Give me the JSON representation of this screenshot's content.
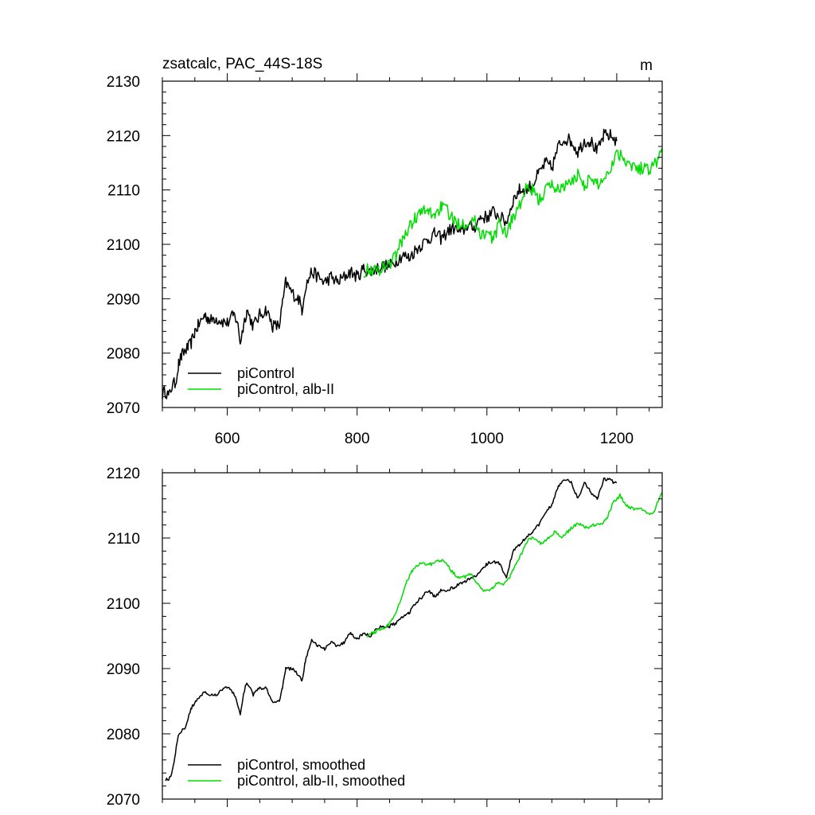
{
  "chart_data": [
    {
      "type": "line",
      "title": "zsatcalc, PAC_44S-18S",
      "units": "m",
      "xlim": [
        500,
        1270
      ],
      "ylim": [
        2070,
        2130
      ],
      "x_ticks": [
        600,
        800,
        1000,
        1200
      ],
      "x_tick_labels": [
        "600",
        "800",
        "1000",
        "1200"
      ],
      "y_ticks": [
        2070,
        2080,
        2090,
        2100,
        2110,
        2120,
        2130
      ],
      "y_tick_labels": [
        "2070",
        "2080",
        "2090",
        "2100",
        "2110",
        "2120",
        "2130"
      ],
      "legend_position": "lower-left",
      "series": [
        {
          "name": "piControl",
          "color": "#000000",
          "noise": 1.2,
          "points": [
            [
              500,
              2072.5
            ],
            [
              505,
              2073
            ],
            [
              510,
              2072
            ],
            [
              515,
              2074
            ],
            [
              520,
              2074.5
            ],
            [
              525,
              2078
            ],
            [
              530,
              2079.5
            ],
            [
              535,
              2080.5
            ],
            [
              540,
              2081
            ],
            [
              545,
              2082
            ],
            [
              550,
              2084
            ],
            [
              555,
              2085
            ],
            [
              560,
              2086
            ],
            [
              565,
              2087
            ],
            [
              570,
              2086.5
            ],
            [
              575,
              2086
            ],
            [
              580,
              2086.5
            ],
            [
              590,
              2086
            ],
            [
              600,
              2085.5
            ],
            [
              610,
              2087
            ],
            [
              615,
              2086
            ],
            [
              620,
              2082
            ],
            [
              625,
              2085
            ],
            [
              630,
              2088
            ],
            [
              640,
              2085
            ],
            [
              650,
              2087
            ],
            [
              660,
              2088
            ],
            [
              670,
              2085
            ],
            [
              680,
              2085
            ],
            [
              685,
              2089
            ],
            [
              690,
              2093
            ],
            [
              700,
              2091
            ],
            [
              710,
              2090
            ],
            [
              715,
              2088
            ],
            [
              720,
              2092
            ],
            [
              730,
              2095
            ],
            [
              740,
              2094
            ],
            [
              750,
              2093
            ],
            [
              760,
              2094
            ],
            [
              770,
              2093
            ],
            [
              780,
              2094
            ],
            [
              790,
              2095
            ],
            [
              800,
              2094
            ],
            [
              810,
              2095.5
            ],
            [
              820,
              2095
            ],
            [
              830,
              2095.5
            ],
            [
              840,
              2096
            ],
            [
              850,
              2096
            ],
            [
              860,
              2097
            ],
            [
              870,
              2098
            ],
            [
              880,
              2097.5
            ],
            [
              890,
              2099
            ],
            [
              900,
              2100
            ],
            [
              910,
              2101
            ],
            [
              920,
              2102
            ],
            [
              930,
              2101
            ],
            [
              940,
              2102.5
            ],
            [
              950,
              2103
            ],
            [
              960,
              2102
            ],
            [
              970,
              2103.5
            ],
            [
              980,
              2103
            ],
            [
              990,
              2105
            ],
            [
              1000,
              2105
            ],
            [
              1010,
              2106
            ],
            [
              1020,
              2105
            ],
            [
              1030,
              2104
            ],
            [
              1040,
              2108
            ],
            [
              1050,
              2110
            ],
            [
              1060,
              2110
            ],
            [
              1070,
              2111
            ],
            [
              1080,
              2113
            ],
            [
              1090,
              2115
            ],
            [
              1100,
              2114
            ],
            [
              1110,
              2118
            ],
            [
              1120,
              2119.5
            ],
            [
              1130,
              2119
            ],
            [
              1140,
              2117
            ],
            [
              1150,
              2119
            ],
            [
              1160,
              2119
            ],
            [
              1170,
              2117
            ],
            [
              1180,
              2120
            ],
            [
              1190,
              2120
            ],
            [
              1200,
              2119
            ]
          ]
        },
        {
          "name": "piControl, alb-II",
          "color": "#00dd00",
          "noise": 1.2,
          "points": [
            [
              810,
              2095
            ],
            [
              820,
              2095.5
            ],
            [
              830,
              2095
            ],
            [
              840,
              2096
            ],
            [
              850,
              2096.5
            ],
            [
              860,
              2098
            ],
            [
              870,
              2101
            ],
            [
              880,
              2103
            ],
            [
              890,
              2105
            ],
            [
              900,
              2106
            ],
            [
              910,
              2106
            ],
            [
              920,
              2105.5
            ],
            [
              930,
              2107
            ],
            [
              940,
              2106
            ],
            [
              950,
              2104
            ],
            [
              960,
              2104
            ],
            [
              970,
              2104
            ],
            [
              980,
              2104.5
            ],
            [
              990,
              2102
            ],
            [
              1000,
              2102
            ],
            [
              1010,
              2101
            ],
            [
              1020,
              2104
            ],
            [
              1030,
              2102
            ],
            [
              1040,
              2105
            ],
            [
              1050,
              2107
            ],
            [
              1060,
              2110
            ],
            [
              1070,
              2110
            ],
            [
              1080,
              2108
            ],
            [
              1090,
              2110
            ],
            [
              1100,
              2111
            ],
            [
              1110,
              2110
            ],
            [
              1120,
              2111
            ],
            [
              1130,
              2111
            ],
            [
              1140,
              2113
            ],
            [
              1150,
              2111
            ],
            [
              1160,
              2112
            ],
            [
              1170,
              2111
            ],
            [
              1180,
              2112
            ],
            [
              1190,
              2114
            ],
            [
              1200,
              2117
            ],
            [
              1210,
              2116
            ],
            [
              1220,
              2115
            ],
            [
              1230,
              2114
            ],
            [
              1240,
              2114
            ],
            [
              1250,
              2114
            ],
            [
              1260,
              2115
            ],
            [
              1270,
              2117
            ]
          ]
        }
      ]
    },
    {
      "type": "line",
      "title": "",
      "xlim": [
        500,
        1270
      ],
      "ylim": [
        2070,
        2120
      ],
      "x_ticks": [
        600,
        800,
        1000,
        1200
      ],
      "y_ticks": [
        2070,
        2080,
        2090,
        2100,
        2110,
        2120
      ],
      "y_tick_labels": [
        "2070",
        "2080",
        "2090",
        "2100",
        "2110",
        "2120"
      ],
      "legend_position": "lower-left",
      "series": [
        {
          "name": "piControl, smoothed",
          "color": "#000000",
          "noise": 0.25,
          "points": [
            [
              505,
              2073
            ],
            [
              510,
              2073
            ],
            [
              515,
              2074
            ],
            [
              520,
              2077
            ],
            [
              525,
              2080
            ],
            [
              535,
              2081
            ],
            [
              545,
              2084
            ],
            [
              555,
              2085.5
            ],
            [
              565,
              2086.5
            ],
            [
              575,
              2086
            ],
            [
              585,
              2086
            ],
            [
              595,
              2087
            ],
            [
              605,
              2087
            ],
            [
              615,
              2085
            ],
            [
              620,
              2083
            ],
            [
              625,
              2086
            ],
            [
              630,
              2088
            ],
            [
              640,
              2086
            ],
            [
              650,
              2087
            ],
            [
              660,
              2087
            ],
            [
              670,
              2085
            ],
            [
              680,
              2085
            ],
            [
              685,
              2087
            ],
            [
              690,
              2090
            ],
            [
              700,
              2090
            ],
            [
              710,
              2089
            ],
            [
              715,
              2088
            ],
            [
              720,
              2091
            ],
            [
              730,
              2094.5
            ],
            [
              740,
              2093.5
            ],
            [
              750,
              2093
            ],
            [
              760,
              2094
            ],
            [
              770,
              2093.5
            ],
            [
              780,
              2094
            ],
            [
              790,
              2095.5
            ],
            [
              800,
              2094.5
            ],
            [
              810,
              2095.5
            ],
            [
              820,
              2095
            ],
            [
              830,
              2096
            ],
            [
              840,
              2096.5
            ],
            [
              850,
              2096.5
            ],
            [
              860,
              2097
            ],
            [
              870,
              2098
            ],
            [
              880,
              2098.5
            ],
            [
              890,
              2100
            ],
            [
              900,
              2101
            ],
            [
              910,
              2102
            ],
            [
              920,
              2101
            ],
            [
              930,
              2102
            ],
            [
              940,
              2102
            ],
            [
              950,
              2102.5
            ],
            [
              960,
              2103
            ],
            [
              970,
              2103.5
            ],
            [
              980,
              2104
            ],
            [
              990,
              2105
            ],
            [
              1000,
              2106
            ],
            [
              1010,
              2106.5
            ],
            [
              1020,
              2106
            ],
            [
              1030,
              2104
            ],
            [
              1040,
              2108
            ],
            [
              1050,
              2109
            ],
            [
              1060,
              2110
            ],
            [
              1070,
              2111
            ],
            [
              1080,
              2112
            ],
            [
              1090,
              2114
            ],
            [
              1100,
              2115
            ],
            [
              1110,
              2118
            ],
            [
              1120,
              2119
            ],
            [
              1130,
              2118.5
            ],
            [
              1140,
              2116
            ],
            [
              1150,
              2118.5
            ],
            [
              1160,
              2117
            ],
            [
              1170,
              2116
            ],
            [
              1180,
              2119
            ],
            [
              1190,
              2119
            ],
            [
              1195,
              2118.5
            ],
            [
              1200,
              2118.5
            ]
          ]
        },
        {
          "name": "piControl, alb-II, smoothed",
          "color": "#00dd00",
          "noise": 0.25,
          "points": [
            [
              815,
              2095
            ],
            [
              825,
              2095.5
            ],
            [
              835,
              2096
            ],
            [
              845,
              2096.5
            ],
            [
              855,
              2097.5
            ],
            [
              865,
              2100
            ],
            [
              875,
              2103
            ],
            [
              885,
              2105
            ],
            [
              895,
              2106
            ],
            [
              905,
              2106
            ],
            [
              915,
              2106
            ],
            [
              925,
              2106.5
            ],
            [
              935,
              2106.5
            ],
            [
              945,
              2105
            ],
            [
              955,
              2104
            ],
            [
              965,
              2104
            ],
            [
              975,
              2104.5
            ],
            [
              985,
              2103
            ],
            [
              995,
              2102
            ],
            [
              1005,
              2102
            ],
            [
              1015,
              2103
            ],
            [
              1025,
              2103
            ],
            [
              1035,
              2104
            ],
            [
              1045,
              2106
            ],
            [
              1055,
              2108
            ],
            [
              1065,
              2110
            ],
            [
              1075,
              2110
            ],
            [
              1085,
              2109
            ],
            [
              1095,
              2110
            ],
            [
              1105,
              2111
            ],
            [
              1115,
              2110
            ],
            [
              1125,
              2111
            ],
            [
              1135,
              2112
            ],
            [
              1145,
              2112
            ],
            [
              1155,
              2111.5
            ],
            [
              1165,
              2112
            ],
            [
              1175,
              2112
            ],
            [
              1185,
              2113
            ],
            [
              1195,
              2115.5
            ],
            [
              1205,
              2116.5
            ],
            [
              1215,
              2115
            ],
            [
              1225,
              2114.5
            ],
            [
              1235,
              2114.5
            ],
            [
              1245,
              2114
            ],
            [
              1255,
              2113.5
            ],
            [
              1265,
              2116
            ],
            [
              1270,
              2117
            ]
          ]
        }
      ]
    }
  ]
}
